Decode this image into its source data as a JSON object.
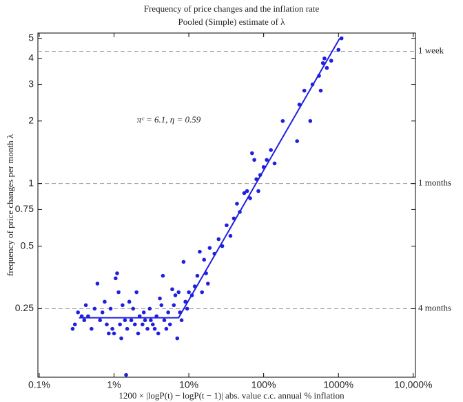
{
  "chart_data": {
    "type": "scatter",
    "title": "Frequency of price changes and the inflation rate",
    "subtitle": "Pooled (Simple) estimate of λ",
    "x_label": "1200 × |logP(t) − logP(t − 1)| abs. value c.c. annual % inflation",
    "y_label": "frequency of price changes per month λ",
    "annotation": "πᶜ = 6.1, η = 0.59",
    "log_x": true,
    "log_y": true,
    "xlim": [
      0.096,
      10700
    ],
    "ylim": [
      0.117,
      5.3
    ],
    "xticks": [
      {
        "value": 0.1,
        "label": "0.1%"
      },
      {
        "value": 1,
        "label": "1%"
      },
      {
        "value": 10,
        "label": "10%"
      },
      {
        "value": 100,
        "label": "100%"
      },
      {
        "value": 1000,
        "label": "1000%"
      },
      {
        "value": 10000,
        "label": "10,000%"
      }
    ],
    "yticks": [
      0.25,
      0.5,
      0.75,
      1,
      2,
      3,
      4,
      5
    ],
    "reference_lines": [
      {
        "value": 4.33,
        "label": "1 week"
      },
      {
        "value": 1,
        "label": "1 months"
      },
      {
        "value": 0.25,
        "label": "4 months"
      }
    ],
    "points": {
      "color": "#1f1fe0",
      "x": [
        0.28,
        0.3,
        0.33,
        0.37,
        0.4,
        0.42,
        0.45,
        0.5,
        0.55,
        0.6,
        0.65,
        0.7,
        0.75,
        0.8,
        0.85,
        0.9,
        0.95,
        1.0,
        1.05,
        1.1,
        1.15,
        1.2,
        1.25,
        1.3,
        1.4,
        1.5,
        1.6,
        1.7,
        1.8,
        1.9,
        2.0,
        2.1,
        2.2,
        2.4,
        2.5,
        2.6,
        2.8,
        3.0,
        3.1,
        3.3,
        3.5,
        3.7,
        3.9,
        4.1,
        4.3,
        4.5,
        4.7,
        5.0,
        5.3,
        5.6,
        6.0,
        6.3,
        6.6,
        7.0,
        7.3,
        7.6,
        8.0,
        8.5,
        9,
        9.5,
        1.45,
        10,
        11,
        12,
        13,
        14,
        15,
        16,
        17,
        18,
        19,
        22,
        25,
        28,
        32,
        36,
        40,
        44,
        48,
        55,
        60,
        66,
        70,
        75,
        80,
        85,
        90,
        100,
        110,
        125,
        140,
        180,
        280,
        300,
        350,
        420,
        450,
        550,
        580,
        620,
        650,
        700,
        800,
        1000,
        1100
      ],
      "y": [
        0.2,
        0.21,
        0.24,
        0.23,
        0.22,
        0.26,
        0.23,
        0.2,
        0.25,
        0.33,
        0.22,
        0.24,
        0.27,
        0.21,
        0.19,
        0.25,
        0.2,
        0.19,
        0.35,
        0.37,
        0.3,
        0.21,
        0.18,
        0.26,
        0.22,
        0.2,
        0.27,
        0.22,
        0.25,
        0.21,
        0.3,
        0.19,
        0.23,
        0.21,
        0.24,
        0.22,
        0.2,
        0.25,
        0.22,
        0.21,
        0.2,
        0.23,
        0.19,
        0.28,
        0.26,
        0.36,
        0.22,
        0.2,
        0.24,
        0.21,
        0.31,
        0.26,
        0.29,
        0.18,
        0.3,
        0.24,
        0.22,
        0.42,
        0.27,
        0.25,
        0.12,
        0.3,
        0.29,
        0.32,
        0.36,
        0.47,
        0.3,
        0.43,
        0.37,
        0.33,
        0.49,
        0.46,
        0.54,
        0.5,
        0.63,
        0.56,
        0.68,
        0.8,
        0.73,
        0.9,
        0.92,
        0.85,
        1.4,
        1.3,
        1.05,
        0.92,
        1.1,
        1.2,
        1.3,
        1.45,
        1.25,
        2.0,
        1.6,
        2.4,
        2.8,
        2.0,
        3.0,
        3.3,
        2.8,
        3.8,
        4.0,
        3.6,
        3.9,
        4.4,
        5.0
      ]
    },
    "fit_line": {
      "color": "#1f1fe0",
      "x": [
        0.34,
        7.3,
        1040
      ],
      "y": [
        0.226,
        0.226,
        5
      ]
    }
  }
}
